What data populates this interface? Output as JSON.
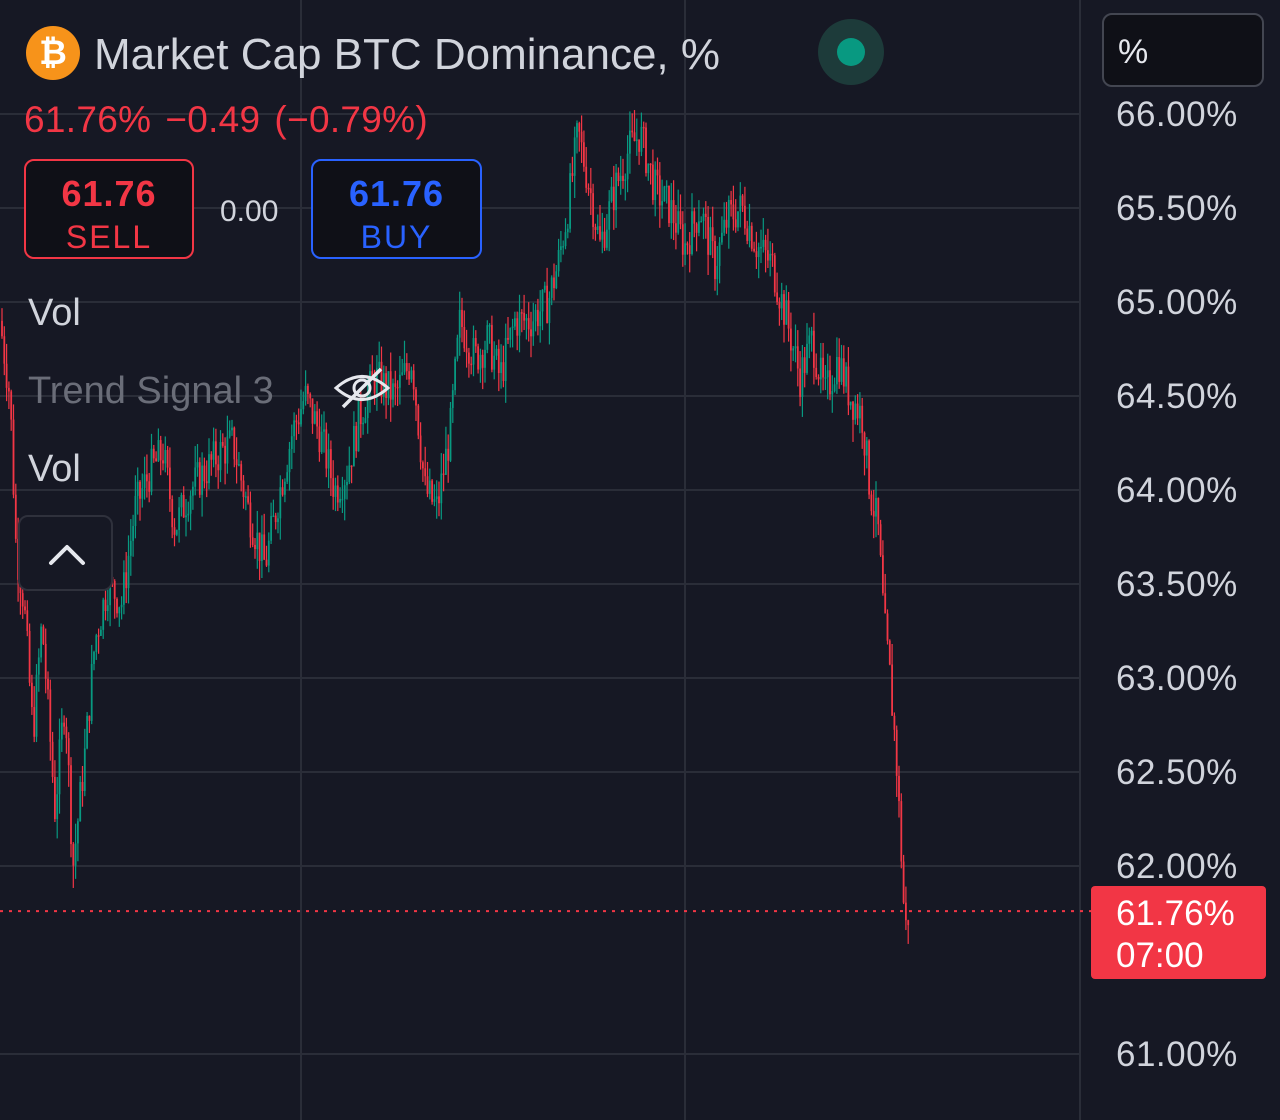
{
  "header": {
    "coin_glyph": "₿",
    "title": "Market Cap BTC Dominance, %",
    "status": "market-open-dot",
    "last": "61.76%",
    "change": "−0.49",
    "change_pct": "(−0.79%)"
  },
  "trade": {
    "sell_price": "61.76",
    "sell_label": "SELL",
    "spread": "0.00",
    "buy_price": "61.76",
    "buy_label": "BUY"
  },
  "indicators": {
    "vol_1": "Vol",
    "trend_signal": "Trend Signal 3",
    "vol_2": "Vol"
  },
  "price_scale": {
    "unit": "%",
    "current_price": "61.76%",
    "countdown": "07:00"
  },
  "colors": {
    "background": "#161824",
    "up": "#089981",
    "down": "#f23645",
    "buy": "#2962ff",
    "grid": "#2a2d38"
  },
  "chart_data": {
    "type": "candlestick",
    "ylim": [
      60.55,
      66.2
    ],
    "yticks": [
      "66.00%",
      "65.50%",
      "65.00%",
      "64.50%",
      "64.00%",
      "63.50%",
      "63.00%",
      "62.50%",
      "62.00%",
      "61.00%"
    ],
    "ytick_values": [
      66.0,
      65.5,
      65.0,
      64.5,
      64.0,
      63.5,
      63.0,
      62.5,
      62.0,
      61.0
    ],
    "last_price": 61.76,
    "series": [
      {
        "name": "",
        "values": [
          [
            0,
            64.9
          ],
          [
            10,
            64.5
          ],
          [
            16,
            63.7
          ],
          [
            24,
            63.4
          ],
          [
            33,
            62.7
          ],
          [
            42,
            63.3
          ],
          [
            55,
            62.3
          ],
          [
            65,
            62.9
          ],
          [
            73,
            62.0
          ],
          [
            85,
            62.6
          ],
          [
            95,
            63.2
          ],
          [
            108,
            63.5
          ],
          [
            122,
            63.4
          ],
          [
            135,
            63.9
          ],
          [
            150,
            64.1
          ],
          [
            163,
            64.2
          ],
          [
            175,
            63.8
          ],
          [
            190,
            64.0
          ],
          [
            205,
            64.1
          ],
          [
            220,
            64.2
          ],
          [
            233,
            64.25
          ],
          [
            248,
            63.9
          ],
          [
            265,
            63.6
          ],
          [
            280,
            64.0
          ],
          [
            292,
            64.3
          ],
          [
            305,
            64.5
          ],
          [
            320,
            64.3
          ],
          [
            335,
            64.0
          ],
          [
            347,
            64.1
          ],
          [
            360,
            64.4
          ],
          [
            375,
            64.6
          ],
          [
            395,
            64.5
          ],
          [
            412,
            64.7
          ],
          [
            425,
            64.0
          ],
          [
            437,
            63.9
          ],
          [
            450,
            64.3
          ],
          [
            460,
            64.9
          ],
          [
            475,
            64.7
          ],
          [
            488,
            64.8
          ],
          [
            500,
            64.6
          ],
          [
            515,
            64.9
          ],
          [
            530,
            64.9
          ],
          [
            548,
            65.0
          ],
          [
            558,
            65.2
          ],
          [
            568,
            65.5
          ],
          [
            578,
            65.9
          ],
          [
            590,
            65.6
          ],
          [
            600,
            65.3
          ],
          [
            615,
            65.6
          ],
          [
            628,
            65.8
          ],
          [
            640,
            65.9
          ],
          [
            655,
            65.6
          ],
          [
            670,
            65.5
          ],
          [
            685,
            65.3
          ],
          [
            700,
            65.5
          ],
          [
            715,
            65.2
          ],
          [
            728,
            65.45
          ],
          [
            742,
            65.5
          ],
          [
            757,
            65.3
          ],
          [
            772,
            65.2
          ],
          [
            787,
            64.9
          ],
          [
            800,
            64.6
          ],
          [
            812,
            64.8
          ],
          [
            825,
            64.5
          ],
          [
            838,
            64.7
          ],
          [
            850,
            64.5
          ],
          [
            862,
            64.4
          ],
          [
            870,
            64.0
          ],
          [
            878,
            63.8
          ],
          [
            884,
            63.3
          ],
          [
            890,
            63.0
          ],
          [
            896,
            62.6
          ],
          [
            901,
            62.1
          ],
          [
            905,
            61.65
          ],
          [
            909,
            61.76
          ]
        ]
      }
    ]
  }
}
